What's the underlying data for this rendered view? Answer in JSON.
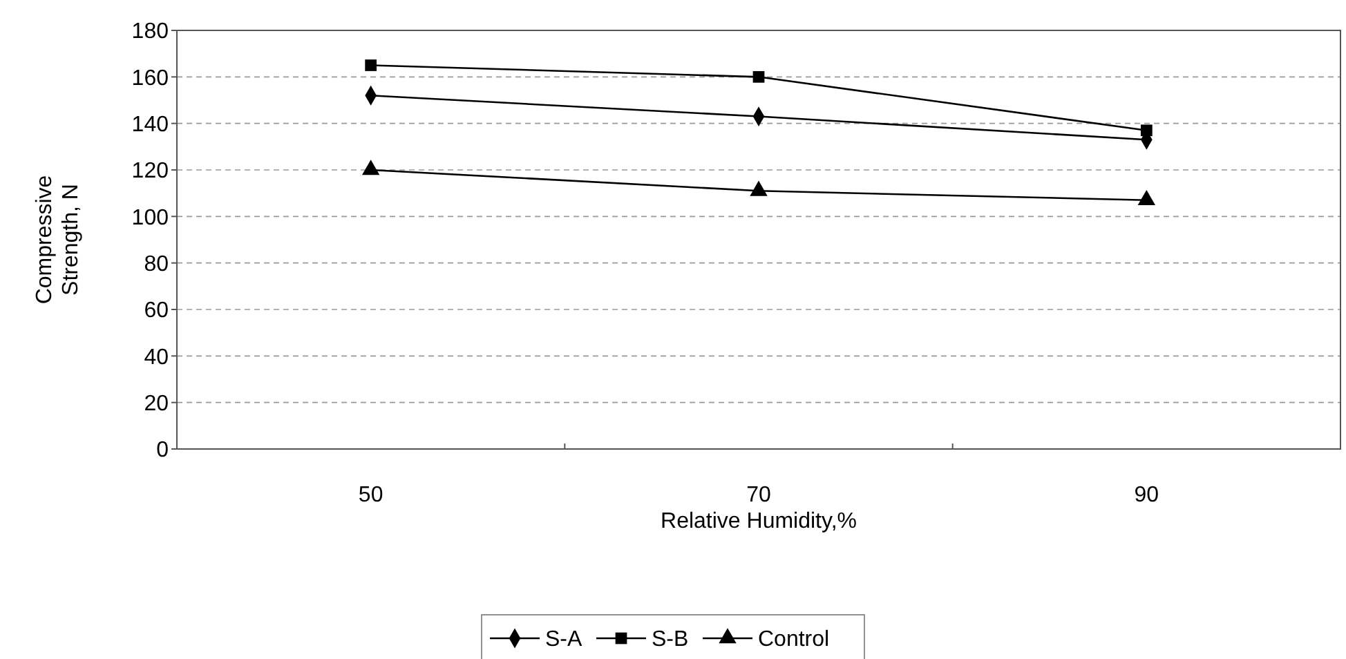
{
  "chart_data": {
    "type": "line",
    "xlabel": "Relative Humidity,%",
    "ylabel": "Compressive Strength, N",
    "categories": [
      "50",
      "70",
      "90"
    ],
    "series": [
      {
        "name": "S-A",
        "color": "#000000",
        "marker": "diamond",
        "values": [
          152,
          143,
          133
        ]
      },
      {
        "name": "S-B",
        "color": "#000000",
        "marker": "square",
        "values": [
          165,
          160,
          137
        ]
      },
      {
        "name": "Control",
        "color": "#000000",
        "marker": "triangle",
        "values": [
          120,
          111,
          107
        ]
      }
    ],
    "ylim": [
      0,
      180
    ],
    "yticks": [
      0,
      20,
      40,
      60,
      80,
      100,
      120,
      140,
      160,
      180
    ],
    "grid": "y",
    "legend": "bottom",
    "line_style": "solid"
  }
}
